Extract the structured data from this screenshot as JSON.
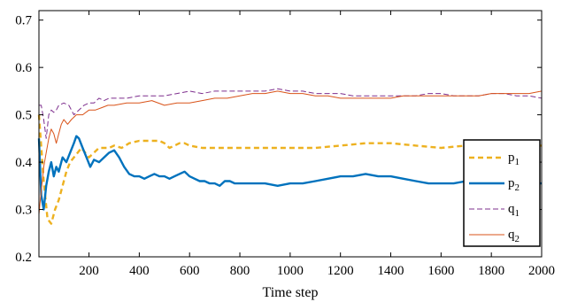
{
  "chart_data": {
    "type": "line",
    "xlabel": "Time step",
    "ylabel": "",
    "title": "",
    "xlim": [
      1,
      2000
    ],
    "ylim": [
      0.2,
      0.72
    ],
    "xticks": [
      200,
      400,
      600,
      800,
      1000,
      1200,
      1400,
      1600,
      1800,
      2000
    ],
    "xtick_labels": [
      "200",
      "400",
      "600",
      "800",
      "1000",
      "1200",
      "1400",
      "1600",
      "1800",
      "2000"
    ],
    "yticks": [
      0.2,
      0.3,
      0.4,
      0.5,
      0.6,
      0.7
    ],
    "ytick_labels": [
      "0.2",
      "0.3",
      "0.4",
      "0.5",
      "0.6",
      "0.7"
    ],
    "legend_position": "right",
    "series": [
      {
        "name": "p1",
        "label_main": "p",
        "label_sub": "1",
        "color": "#EDB120",
        "style": "dashed",
        "width": 2.4,
        "points": [
          [
            1,
            0.5
          ],
          [
            20,
            0.36
          ],
          [
            35,
            0.28
          ],
          [
            50,
            0.27
          ],
          [
            65,
            0.3
          ],
          [
            80,
            0.32
          ],
          [
            95,
            0.35
          ],
          [
            110,
            0.38
          ],
          [
            125,
            0.4
          ],
          [
            140,
            0.41
          ],
          [
            155,
            0.42
          ],
          [
            170,
            0.43
          ],
          [
            185,
            0.42
          ],
          [
            200,
            0.41
          ],
          [
            220,
            0.42
          ],
          [
            240,
            0.43
          ],
          [
            260,
            0.43
          ],
          [
            280,
            0.43
          ],
          [
            300,
            0.435
          ],
          [
            330,
            0.43
          ],
          [
            360,
            0.44
          ],
          [
            400,
            0.445
          ],
          [
            430,
            0.445
          ],
          [
            460,
            0.445
          ],
          [
            480,
            0.445
          ],
          [
            500,
            0.44
          ],
          [
            520,
            0.43
          ],
          [
            540,
            0.435
          ],
          [
            560,
            0.44
          ],
          [
            580,
            0.44
          ],
          [
            600,
            0.435
          ],
          [
            650,
            0.43
          ],
          [
            700,
            0.43
          ],
          [
            750,
            0.43
          ],
          [
            800,
            0.43
          ],
          [
            900,
            0.43
          ],
          [
            1000,
            0.43
          ],
          [
            1100,
            0.43
          ],
          [
            1200,
            0.435
          ],
          [
            1300,
            0.44
          ],
          [
            1400,
            0.44
          ],
          [
            1500,
            0.435
          ],
          [
            1600,
            0.43
          ],
          [
            1700,
            0.435
          ],
          [
            1800,
            0.435
          ],
          [
            1900,
            0.435
          ],
          [
            2000,
            0.435
          ]
        ]
      },
      {
        "name": "p2",
        "label_main": "p",
        "label_sub": "2",
        "color": "#0072BD",
        "style": "solid",
        "width": 2.4,
        "points": [
          [
            1,
            0.45
          ],
          [
            10,
            0.33
          ],
          [
            20,
            0.3
          ],
          [
            30,
            0.35
          ],
          [
            40,
            0.38
          ],
          [
            50,
            0.4
          ],
          [
            60,
            0.37
          ],
          [
            70,
            0.39
          ],
          [
            80,
            0.38
          ],
          [
            95,
            0.41
          ],
          [
            110,
            0.4
          ],
          [
            125,
            0.42
          ],
          [
            140,
            0.44
          ],
          [
            150,
            0.455
          ],
          [
            160,
            0.45
          ],
          [
            175,
            0.43
          ],
          [
            190,
            0.41
          ],
          [
            205,
            0.39
          ],
          [
            220,
            0.405
          ],
          [
            240,
            0.4
          ],
          [
            260,
            0.41
          ],
          [
            280,
            0.42
          ],
          [
            300,
            0.425
          ],
          [
            320,
            0.41
          ],
          [
            340,
            0.39
          ],
          [
            360,
            0.375
          ],
          [
            380,
            0.37
          ],
          [
            400,
            0.37
          ],
          [
            420,
            0.365
          ],
          [
            440,
            0.37
          ],
          [
            460,
            0.375
          ],
          [
            480,
            0.37
          ],
          [
            500,
            0.37
          ],
          [
            520,
            0.365
          ],
          [
            540,
            0.37
          ],
          [
            560,
            0.375
          ],
          [
            580,
            0.38
          ],
          [
            600,
            0.37
          ],
          [
            620,
            0.365
          ],
          [
            640,
            0.36
          ],
          [
            660,
            0.36
          ],
          [
            680,
            0.355
          ],
          [
            700,
            0.355
          ],
          [
            720,
            0.35
          ],
          [
            740,
            0.36
          ],
          [
            760,
            0.36
          ],
          [
            780,
            0.355
          ],
          [
            800,
            0.355
          ],
          [
            850,
            0.355
          ],
          [
            900,
            0.355
          ],
          [
            950,
            0.35
          ],
          [
            1000,
            0.355
          ],
          [
            1050,
            0.355
          ],
          [
            1100,
            0.36
          ],
          [
            1150,
            0.365
          ],
          [
            1200,
            0.37
          ],
          [
            1250,
            0.37
          ],
          [
            1300,
            0.375
          ],
          [
            1350,
            0.37
          ],
          [
            1400,
            0.37
          ],
          [
            1450,
            0.365
          ],
          [
            1500,
            0.36
          ],
          [
            1550,
            0.355
          ],
          [
            1600,
            0.355
          ],
          [
            1650,
            0.355
          ],
          [
            1700,
            0.36
          ],
          [
            1750,
            0.36
          ],
          [
            1800,
            0.36
          ],
          [
            1850,
            0.36
          ],
          [
            1900,
            0.36
          ],
          [
            1950,
            0.355
          ],
          [
            2000,
            0.355
          ]
        ]
      },
      {
        "name": "q1",
        "label_main": "q",
        "label_sub": "1",
        "color": "#7E2F8E",
        "style": "dashed",
        "width": 1.0,
        "points": [
          [
            1,
            0.52
          ],
          [
            10,
            0.52
          ],
          [
            20,
            0.49
          ],
          [
            30,
            0.45
          ],
          [
            40,
            0.5
          ],
          [
            50,
            0.51
          ],
          [
            60,
            0.505
          ],
          [
            70,
            0.51
          ],
          [
            80,
            0.52
          ],
          [
            100,
            0.525
          ],
          [
            120,
            0.52
          ],
          [
            140,
            0.5
          ],
          [
            160,
            0.51
          ],
          [
            180,
            0.52
          ],
          [
            200,
            0.525
          ],
          [
            220,
            0.525
          ],
          [
            240,
            0.535
          ],
          [
            260,
            0.53
          ],
          [
            280,
            0.535
          ],
          [
            300,
            0.535
          ],
          [
            350,
            0.535
          ],
          [
            400,
            0.54
          ],
          [
            450,
            0.54
          ],
          [
            500,
            0.54
          ],
          [
            550,
            0.545
          ],
          [
            600,
            0.55
          ],
          [
            650,
            0.545
          ],
          [
            700,
            0.55
          ],
          [
            750,
            0.55
          ],
          [
            800,
            0.55
          ],
          [
            850,
            0.55
          ],
          [
            900,
            0.55
          ],
          [
            950,
            0.555
          ],
          [
            1000,
            0.55
          ],
          [
            1050,
            0.55
          ],
          [
            1100,
            0.545
          ],
          [
            1150,
            0.545
          ],
          [
            1200,
            0.545
          ],
          [
            1250,
            0.54
          ],
          [
            1300,
            0.54
          ],
          [
            1350,
            0.54
          ],
          [
            1400,
            0.54
          ],
          [
            1450,
            0.54
          ],
          [
            1500,
            0.54
          ],
          [
            1550,
            0.545
          ],
          [
            1600,
            0.545
          ],
          [
            1650,
            0.54
          ],
          [
            1700,
            0.54
          ],
          [
            1750,
            0.54
          ],
          [
            1800,
            0.545
          ],
          [
            1850,
            0.545
          ],
          [
            1900,
            0.54
          ],
          [
            1950,
            0.54
          ],
          [
            2000,
            0.535
          ]
        ]
      },
      {
        "name": "q2",
        "label_main": "q",
        "label_sub": "2",
        "color": "#D95319",
        "style": "solid",
        "width": 1.0,
        "points": [
          [
            1,
            0.29
          ],
          [
            10,
            0.34
          ],
          [
            20,
            0.39
          ],
          [
            30,
            0.42
          ],
          [
            40,
            0.45
          ],
          [
            50,
            0.47
          ],
          [
            60,
            0.46
          ],
          [
            70,
            0.44
          ],
          [
            80,
            0.46
          ],
          [
            90,
            0.48
          ],
          [
            100,
            0.49
          ],
          [
            115,
            0.48
          ],
          [
            130,
            0.49
          ],
          [
            150,
            0.5
          ],
          [
            175,
            0.5
          ],
          [
            200,
            0.51
          ],
          [
            225,
            0.51
          ],
          [
            250,
            0.515
          ],
          [
            275,
            0.52
          ],
          [
            300,
            0.52
          ],
          [
            350,
            0.525
          ],
          [
            400,
            0.525
          ],
          [
            450,
            0.53
          ],
          [
            500,
            0.52
          ],
          [
            550,
            0.525
          ],
          [
            600,
            0.525
          ],
          [
            650,
            0.53
          ],
          [
            700,
            0.535
          ],
          [
            750,
            0.535
          ],
          [
            800,
            0.54
          ],
          [
            850,
            0.545
          ],
          [
            900,
            0.545
          ],
          [
            950,
            0.55
          ],
          [
            1000,
            0.545
          ],
          [
            1050,
            0.545
          ],
          [
            1100,
            0.54
          ],
          [
            1150,
            0.54
          ],
          [
            1200,
            0.535
          ],
          [
            1250,
            0.535
          ],
          [
            1300,
            0.535
          ],
          [
            1350,
            0.535
          ],
          [
            1400,
            0.535
          ],
          [
            1450,
            0.54
          ],
          [
            1500,
            0.54
          ],
          [
            1550,
            0.54
          ],
          [
            1600,
            0.54
          ],
          [
            1650,
            0.54
          ],
          [
            1700,
            0.54
          ],
          [
            1750,
            0.54
          ],
          [
            1800,
            0.545
          ],
          [
            1850,
            0.545
          ],
          [
            1900,
            0.545
          ],
          [
            1950,
            0.545
          ],
          [
            2000,
            0.55
          ]
        ]
      }
    ]
  }
}
